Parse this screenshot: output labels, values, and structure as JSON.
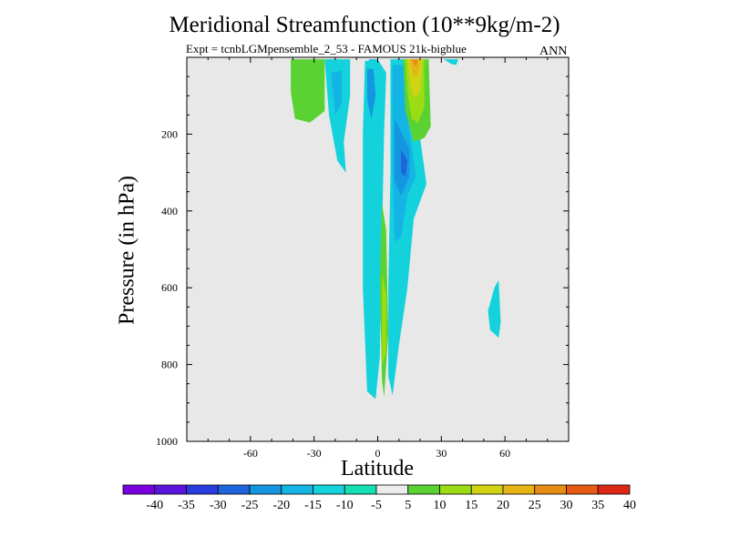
{
  "chart_data": {
    "type": "contour",
    "title": "Meridional Streamfunction (10**9kg/m-2)",
    "subtitle": "Expt = tcnbLGMpensemble_2_53 - FAMOUS 21k-bigblue",
    "season": "ANN",
    "xlabel": "Latitude",
    "ylabel": "Pressure (in hPa)",
    "xlim": [
      -90,
      90
    ],
    "ylim": [
      0,
      1000
    ],
    "y_inverted": true,
    "x_ticks": [
      -60,
      -30,
      0,
      30,
      60
    ],
    "x_tick_labels": [
      "-60",
      "-30",
      "0",
      "30",
      "60"
    ],
    "y_ticks": [
      200,
      400,
      600,
      800,
      1000
    ],
    "y_tick_labels": [
      "200",
      "400",
      "600",
      "800",
      "1000"
    ],
    "colorbar": {
      "labels": [
        "-40",
        "-35",
        "-30",
        "-25",
        "-20",
        "-15",
        "-10",
        "-5",
        "5",
        "10",
        "15",
        "20",
        "25",
        "30",
        "35",
        "40"
      ],
      "colors": [
        "#7b00e0",
        "#5a14dc",
        "#2a3ce0",
        "#1e64dc",
        "#1496e0",
        "#14b4e4",
        "#14d2dc",
        "#14e0b4",
        "#ececec",
        "#5ad232",
        "#9cdc14",
        "#d2d214",
        "#e6b414",
        "#e68c14",
        "#e65a14",
        "#dc2814"
      ]
    },
    "regions": [
      {
        "name": "region-nh-lowlat-negative-upper",
        "level": -15,
        "color": "#14b4e4",
        "points": [
          [
            -6,
            35
          ],
          [
            -4,
            5
          ],
          [
            0,
            5
          ],
          [
            1,
            40
          ],
          [
            -1,
            120
          ],
          [
            -4,
            80
          ]
        ]
      },
      {
        "name": "region-nh-negative-tongue",
        "level": -10,
        "color": "#14d2dc",
        "points": [
          [
            -6,
            10
          ],
          [
            0,
            5
          ],
          [
            4,
            40
          ],
          [
            3,
            200
          ],
          [
            2,
            470
          ],
          [
            1,
            780
          ],
          [
            -1,
            890
          ],
          [
            -5,
            870
          ],
          [
            -7,
            600
          ],
          [
            -7,
            200
          ]
        ]
      },
      {
        "name": "region-nh-negative-core",
        "level": -20,
        "color": "#1496e0",
        "points": [
          [
            -5,
            30
          ],
          [
            -2,
            30
          ],
          [
            -1,
            100
          ],
          [
            -3,
            160
          ],
          [
            -5,
            110
          ]
        ]
      },
      {
        "name": "region-sh-negative-outer",
        "level": -10,
        "color": "#14d2dc",
        "points": [
          [
            -25,
            5
          ],
          [
            -13,
            5
          ],
          [
            -13,
            100
          ],
          [
            -16,
            220
          ],
          [
            -15,
            300
          ],
          [
            -19,
            270
          ],
          [
            -23,
            150
          ]
        ]
      },
      {
        "name": "region-sh-negative-inner",
        "level": -15,
        "color": "#14b4e4",
        "points": [
          [
            -22,
            40
          ],
          [
            -17,
            35
          ],
          [
            -17,
            120
          ],
          [
            -20,
            150
          ]
        ]
      },
      {
        "name": "region-sh-positive-outer",
        "level": 5,
        "color": "#5ad232",
        "points": [
          [
            -41,
            5
          ],
          [
            -25,
            5
          ],
          [
            -25,
            140
          ],
          [
            -32,
            170
          ],
          [
            -39,
            160
          ],
          [
            -41,
            90
          ]
        ]
      },
      {
        "name": "region-eq-negative-lower",
        "level": -10,
        "color": "#14d2dc",
        "points": [
          [
            6,
            5
          ],
          [
            18,
            5
          ],
          [
            19,
            170
          ],
          [
            23,
            330
          ],
          [
            17,
            420
          ],
          [
            14,
            600
          ],
          [
            10,
            750
          ],
          [
            7,
            880
          ],
          [
            5,
            830
          ],
          [
            5,
            600
          ],
          [
            6,
            300
          ]
        ]
      },
      {
        "name": "region-eq-negative-mid",
        "level": -15,
        "color": "#14b4e4",
        "points": [
          [
            7,
            20
          ],
          [
            14,
            20
          ],
          [
            14,
            150
          ],
          [
            18,
            310
          ],
          [
            14,
            360
          ],
          [
            11,
            470
          ],
          [
            8,
            480
          ],
          [
            7,
            300
          ]
        ]
      },
      {
        "name": "region-eq-negative-core",
        "level": -20,
        "color": "#1496e0",
        "points": [
          [
            8,
            160
          ],
          [
            15,
            240
          ],
          [
            15,
            310
          ],
          [
            11,
            360
          ],
          [
            8,
            320
          ]
        ]
      },
      {
        "name": "region-eq-negative-deep",
        "level": -25,
        "color": "#1e64dc",
        "points": [
          [
            11,
            240
          ],
          [
            14,
            270
          ],
          [
            13,
            310
          ],
          [
            11,
            300
          ]
        ]
      },
      {
        "name": "region-eq-positive-column",
        "level": 5,
        "color": "#5ad232",
        "points": [
          [
            2,
            380
          ],
          [
            4,
            450
          ],
          [
            5,
            720
          ],
          [
            3,
            885
          ],
          [
            2,
            840
          ],
          [
            1,
            600
          ]
        ]
      },
      {
        "name": "region-eq-positive-inner",
        "level": 10,
        "color": "#9cdc14",
        "points": [
          [
            2,
            560
          ],
          [
            4,
            620
          ],
          [
            4,
            770
          ],
          [
            2,
            800
          ],
          [
            2,
            680
          ]
        ]
      },
      {
        "name": "region-nh-positive-outer",
        "level": 5,
        "color": "#5ad232",
        "points": [
          [
            12,
            5
          ],
          [
            24,
            5
          ],
          [
            25,
            180
          ],
          [
            22,
            210
          ],
          [
            17,
            220
          ],
          [
            13,
            140
          ]
        ]
      },
      {
        "name": "region-nh-positive-10",
        "level": 10,
        "color": "#9cdc14",
        "points": [
          [
            13,
            5
          ],
          [
            22,
            5
          ],
          [
            22,
            130
          ],
          [
            19,
            170
          ],
          [
            16,
            160
          ],
          [
            14,
            90
          ]
        ]
      },
      {
        "name": "region-nh-positive-15",
        "level": 15,
        "color": "#d2d214",
        "points": [
          [
            14,
            5
          ],
          [
            21,
            5
          ],
          [
            20,
            90
          ],
          [
            17,
            105
          ],
          [
            15,
            60
          ]
        ]
      },
      {
        "name": "region-nh-positive-20",
        "level": 20,
        "color": "#e6b414",
        "points": [
          [
            15,
            5
          ],
          [
            20,
            5
          ],
          [
            19,
            45
          ],
          [
            17,
            50
          ]
        ]
      },
      {
        "name": "region-nh-positive-25",
        "level": 25,
        "color": "#e68c14",
        "points": [
          [
            16,
            5
          ],
          [
            19,
            5
          ],
          [
            18,
            25
          ]
        ]
      },
      {
        "name": "region-nh-subtropic-negative",
        "level": -10,
        "color": "#14d2dc",
        "points": [
          [
            31,
            5
          ],
          [
            38,
            5
          ],
          [
            37,
            20
          ],
          [
            35,
            18
          ]
        ]
      },
      {
        "name": "region-nh-midlat-negative-blob",
        "level": -10,
        "color": "#14d2dc",
        "points": [
          [
            55,
            600
          ],
          [
            57,
            580
          ],
          [
            58,
            690
          ],
          [
            57,
            730
          ],
          [
            53,
            710
          ],
          [
            52,
            660
          ]
        ]
      }
    ]
  }
}
